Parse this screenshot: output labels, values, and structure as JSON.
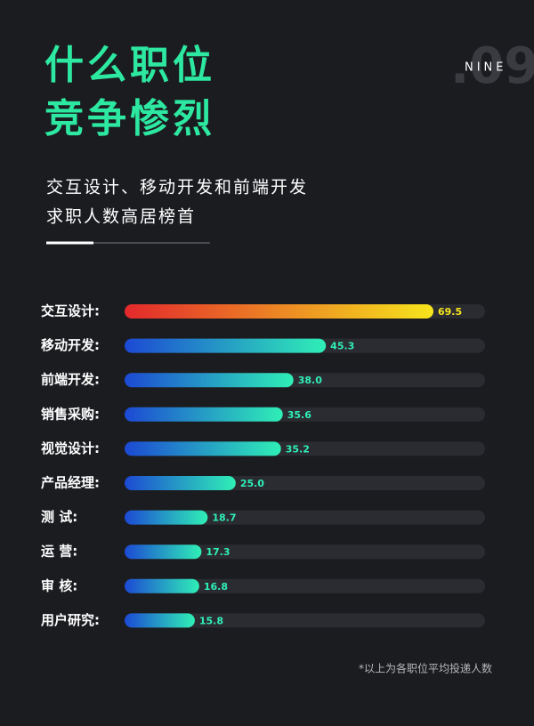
{
  "chart_data": {
    "type": "bar",
    "title": [
      "什么职位",
      "竞争惨烈"
    ],
    "subtitle": [
      "交互设计、移动开发和前端开发",
      "求职人数高居榜首"
    ],
    "section_label": "NINE",
    "section_number": ".09",
    "categories": [
      "交互设计:",
      "移动开发:",
      "前端开发:",
      "销售采购:",
      "视觉设计:",
      "产品经理:",
      "测 试:",
      "运 营:",
      "审 核:",
      "用户研究:"
    ],
    "values": [
      69.5,
      45.3,
      38.0,
      35.6,
      35.2,
      25.0,
      18.7,
      17.3,
      16.8,
      15.8
    ],
    "value_labels": [
      "69.5",
      "45.3",
      "38.0",
      "35.6",
      "35.2",
      "25.0",
      "18.7",
      "17.3",
      "16.8",
      "15.8"
    ],
    "highlight_gradient": [
      "#e3282c",
      "#f6e51c"
    ],
    "gradient": [
      "#1c49d4",
      "#2fefb6"
    ],
    "note": "*以上为各职位平均投递人数"
  }
}
